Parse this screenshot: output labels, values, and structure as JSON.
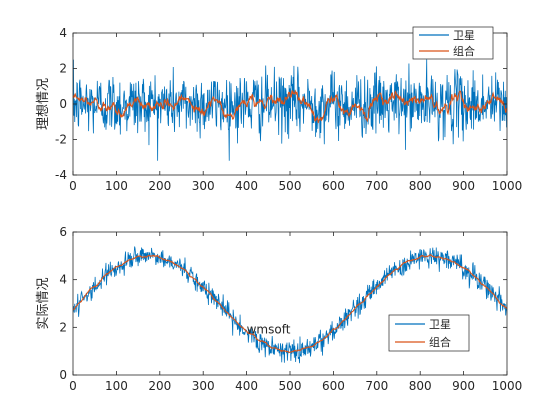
{
  "chart_data": [
    {
      "type": "line",
      "title": "",
      "xlabel": "",
      "ylabel": "理想情况",
      "xlim": [
        0,
        1000
      ],
      "ylim": [
        -4,
        4
      ],
      "xticks": [
        0,
        100,
        200,
        300,
        400,
        500,
        600,
        700,
        800,
        900,
        1000
      ],
      "yticks": [
        -4,
        -2,
        0,
        2,
        4
      ],
      "legend_position": "top-right",
      "series": [
        {
          "name": "卫星",
          "color": "#0072BD",
          "shape": "white-noise",
          "mean": 0,
          "spread": 0.9,
          "range": [
            -3.2,
            3.5
          ],
          "n_points": 1000
        },
        {
          "name": "组合",
          "color": "#D95319",
          "shape": "smoothed-noise",
          "mean": 0,
          "spread": 0.2,
          "range": [
            -0.5,
            0.8
          ],
          "n_points": 1000
        }
      ],
      "annotation": ""
    },
    {
      "type": "line",
      "title": "",
      "xlabel": "",
      "ylabel": "实际情况",
      "xlim": [
        0,
        1000
      ],
      "ylim": [
        0,
        6
      ],
      "xticks": [
        0,
        100,
        200,
        300,
        400,
        500,
        600,
        700,
        800,
        900,
        1000
      ],
      "yticks": [
        0,
        2,
        4,
        6
      ],
      "legend_position": "bottom-right",
      "signal": {
        "offset": 3,
        "amplitude": 2,
        "period": 650,
        "phase_shift": 12,
        "description": "sinusoid, peaks near x=150 and x=800, trough near x=470"
      },
      "series": [
        {
          "name": "卫星",
          "color": "#0072BD",
          "shape": "sinusoid-plus-noise",
          "noise_spread": 0.22,
          "n_points": 1000
        },
        {
          "name": "组合",
          "color": "#D95319",
          "shape": "sinusoid-smoothed",
          "noise_spread": 0.05,
          "n_points": 1000
        }
      ],
      "annotation": "wmsoft"
    }
  ]
}
